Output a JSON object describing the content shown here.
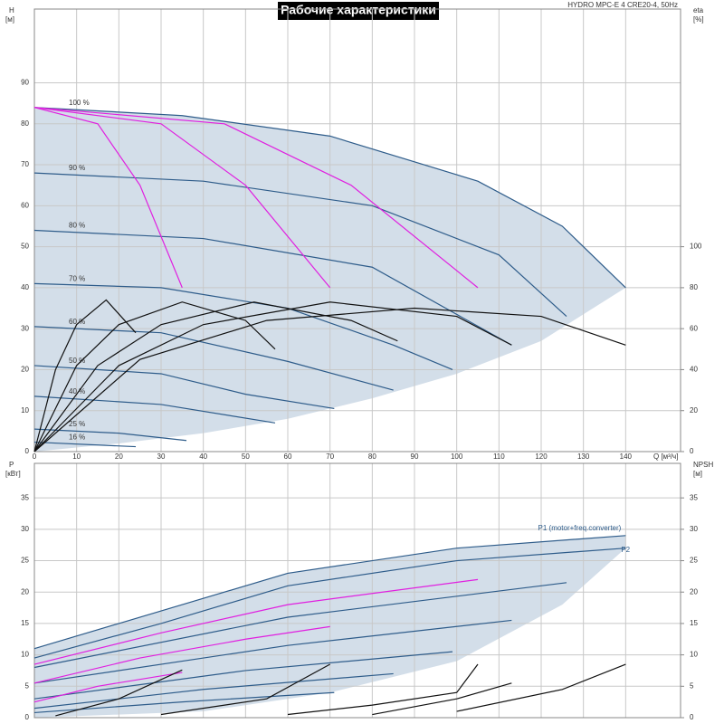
{
  "chart_data": [
    {
      "type": "line",
      "title": "Рабочие характеристики",
      "subtitle": "HYDRO MPC-E 4 CRE20-4, 50Hz",
      "xlabel": "Q [м³/ч]",
      "ylabel": "H",
      "ylabel_unit": "[м]",
      "y2label": "eta",
      "y2label_unit": "[%]",
      "xlim": [
        0,
        153
      ],
      "ylim": [
        0,
        108
      ],
      "y2lim": [
        0,
        216
      ],
      "xticks": [
        0,
        10,
        20,
        30,
        40,
        50,
        60,
        70,
        80,
        90,
        100,
        110,
        120,
        130,
        140
      ],
      "yticks": [
        0,
        10,
        20,
        30,
        40,
        50,
        60,
        70,
        80,
        90
      ],
      "y2ticks": [
        0,
        20,
        40,
        60,
        80,
        100
      ],
      "grid": true,
      "label_at": "start",
      "show_xtick_labels": true,
      "range_color": "#d3dee9",
      "range_upper": {
        "x": [
          0,
          35,
          70,
          105,
          125,
          140
        ],
        "values": [
          84,
          82,
          77,
          66,
          55,
          40
        ]
      },
      "range_lower": {
        "x": [
          140,
          120,
          100,
          80,
          60,
          40,
          20,
          5,
          0
        ],
        "values": [
          40,
          27,
          19,
          13,
          8,
          4.5,
          2,
          0.5,
          0
        ]
      },
      "series": [
        {
          "name": "100 %",
          "color": "#2e5c8a",
          "x": [
            0,
            35,
            70,
            105,
            125,
            140
          ],
          "values": [
            84,
            82,
            77,
            66,
            55,
            40
          ]
        },
        {
          "name": "90 %",
          "color": "#2e5c8a",
          "x": [
            0,
            40,
            80,
            110,
            126
          ],
          "values": [
            68,
            66,
            60,
            48,
            33
          ]
        },
        {
          "name": "80 %",
          "color": "#2e5c8a",
          "x": [
            0,
            40,
            80,
            113
          ],
          "values": [
            54,
            52,
            45,
            26
          ]
        },
        {
          "name": "70 %",
          "color": "#2e5c8a",
          "x": [
            0,
            30,
            60,
            85,
            99
          ],
          "values": [
            41,
            40,
            35,
            26,
            20
          ]
        },
        {
          "name": "60 %",
          "color": "#2e5c8a",
          "x": [
            0,
            30,
            60,
            85
          ],
          "values": [
            30.5,
            29,
            22,
            15
          ]
        },
        {
          "name": "50 %",
          "color": "#2e5c8a",
          "x": [
            0,
            30,
            50,
            71
          ],
          "values": [
            21,
            19,
            14,
            10.5
          ]
        },
        {
          "name": "40 %",
          "color": "#2e5c8a",
          "x": [
            0,
            30,
            57
          ],
          "values": [
            13.5,
            11.5,
            7
          ]
        },
        {
          "name": "25 %",
          "color": "#2e5c8a",
          "x": [
            0,
            20,
            36
          ],
          "values": [
            5.5,
            4.5,
            2.7
          ]
        },
        {
          "name": "16 %",
          "color": "#2e5c8a",
          "x": [
            0,
            24
          ],
          "values": [
            2.3,
            1.2
          ]
        },
        {
          "color": "#e020e0",
          "x": [
            0,
            15,
            25,
            35
          ],
          "values": [
            84,
            80,
            65,
            40
          ]
        },
        {
          "color": "#e020e0",
          "x": [
            0,
            30,
            50,
            70
          ],
          "values": [
            84,
            80,
            65,
            40
          ]
        },
        {
          "color": "#e020e0",
          "x": [
            0,
            45,
            75,
            105
          ],
          "values": [
            84,
            80,
            65,
            40
          ]
        },
        {
          "color": "#111111",
          "axis": "y2",
          "x": [
            0,
            5,
            10,
            17,
            24
          ],
          "values": [
            0,
            40,
            62,
            74,
            58
          ]
        },
        {
          "color": "#111111",
          "axis": "y2",
          "x": [
            0,
            10,
            20,
            35,
            50,
            57
          ],
          "values": [
            0,
            42,
            62,
            73,
            64,
            50
          ]
        },
        {
          "color": "#111111",
          "axis": "y2",
          "x": [
            0,
            15,
            30,
            52,
            75,
            86
          ],
          "values": [
            0,
            42,
            62,
            73,
            64,
            54
          ]
        },
        {
          "color": "#111111",
          "axis": "y2",
          "x": [
            0,
            20,
            40,
            70,
            100,
            113
          ],
          "values": [
            0,
            42,
            62,
            73,
            66,
            52
          ]
        },
        {
          "color": "#111111",
          "axis": "y2",
          "x": [
            0,
            25,
            55,
            90,
            120,
            140
          ],
          "values": [
            0,
            45,
            64,
            70,
            66,
            52
          ]
        }
      ]
    },
    {
      "type": "line",
      "ylabel": "P",
      "ylabel_unit": "[кВт]",
      "y2label": "NPSH",
      "y2label_unit": "[м]",
      "xlim": [
        0,
        153
      ],
      "ylim": [
        0,
        40.5
      ],
      "y2lim": [
        0,
        40.5
      ],
      "xticks": [
        0,
        10,
        20,
        30,
        40,
        50,
        60,
        70,
        80,
        90,
        100,
        110,
        120,
        130,
        140
      ],
      "yticks": [
        0,
        5,
        10,
        15,
        20,
        25,
        30,
        35
      ],
      "y2ticks": [
        0,
        5,
        10,
        15,
        20,
        25,
        30,
        35
      ],
      "grid": true,
      "label_at": "end",
      "show_xtick_labels": false,
      "range_color": "#d3dee9",
      "range_upper": {
        "x": [
          0,
          30,
          60,
          100,
          140
        ],
        "values": [
          11,
          17,
          23,
          27,
          29
        ]
      },
      "range_lower": {
        "x": [
          140,
          125,
          100,
          70,
          40,
          0
        ],
        "values": [
          27,
          18,
          9,
          4,
          1,
          0
        ]
      },
      "series": [
        {
          "name": "P1 (motor+freq.converter)",
          "color": "#2e5c8a",
          "x": [
            0,
            30,
            60,
            100,
            140
          ],
          "values": [
            11,
            17,
            23,
            27,
            29
          ]
        },
        {
          "name": "P2",
          "color": "#2e5c8a",
          "x": [
            0,
            30,
            60,
            100,
            140
          ],
          "values": [
            9.5,
            15,
            21,
            25,
            27
          ]
        },
        {
          "color": "#2e5c8a",
          "x": [
            0,
            60,
            126
          ],
          "values": [
            8,
            16,
            21.5
          ]
        },
        {
          "color": "#2e5c8a",
          "x": [
            0,
            60,
            113
          ],
          "values": [
            5.5,
            11.5,
            15.5
          ]
        },
        {
          "color": "#2e5c8a",
          "x": [
            0,
            50,
            99
          ],
          "values": [
            3,
            7.5,
            10.5
          ]
        },
        {
          "color": "#2e5c8a",
          "x": [
            0,
            40,
            85
          ],
          "values": [
            1.5,
            4.5,
            7
          ]
        },
        {
          "color": "#2e5c8a",
          "x": [
            0,
            35,
            71
          ],
          "values": [
            0.8,
            2.5,
            4
          ]
        },
        {
          "color": "#e020e0",
          "x": [
            0,
            30,
            60,
            105
          ],
          "values": [
            8.5,
            13.5,
            18,
            22
          ]
        },
        {
          "color": "#e020e0",
          "x": [
            0,
            25,
            50,
            70
          ],
          "values": [
            5.5,
            9.5,
            12.5,
            14.5
          ]
        },
        {
          "color": "#e020e0",
          "x": [
            0,
            15,
            35
          ],
          "values": [
            2.5,
            5,
            7.2
          ]
        },
        {
          "color": "#111111",
          "axis": "y2",
          "x": [
            5,
            20,
            35
          ],
          "values": [
            0.3,
            3,
            7.6
          ]
        },
        {
          "color": "#111111",
          "axis": "y2",
          "x": [
            30,
            55,
            70
          ],
          "values": [
            0.5,
            3,
            8.5
          ]
        },
        {
          "color": "#111111",
          "axis": "y2",
          "x": [
            60,
            80,
            100,
            105
          ],
          "values": [
            0.5,
            2,
            4,
            8.5
          ]
        },
        {
          "color": "#111111",
          "axis": "y2",
          "x": [
            80,
            100,
            113
          ],
          "values": [
            0.5,
            3,
            5.5
          ]
        },
        {
          "color": "#111111",
          "axis": "y2",
          "x": [
            100,
            125,
            140
          ],
          "values": [
            1,
            4.5,
            8.5
          ]
        }
      ]
    }
  ]
}
